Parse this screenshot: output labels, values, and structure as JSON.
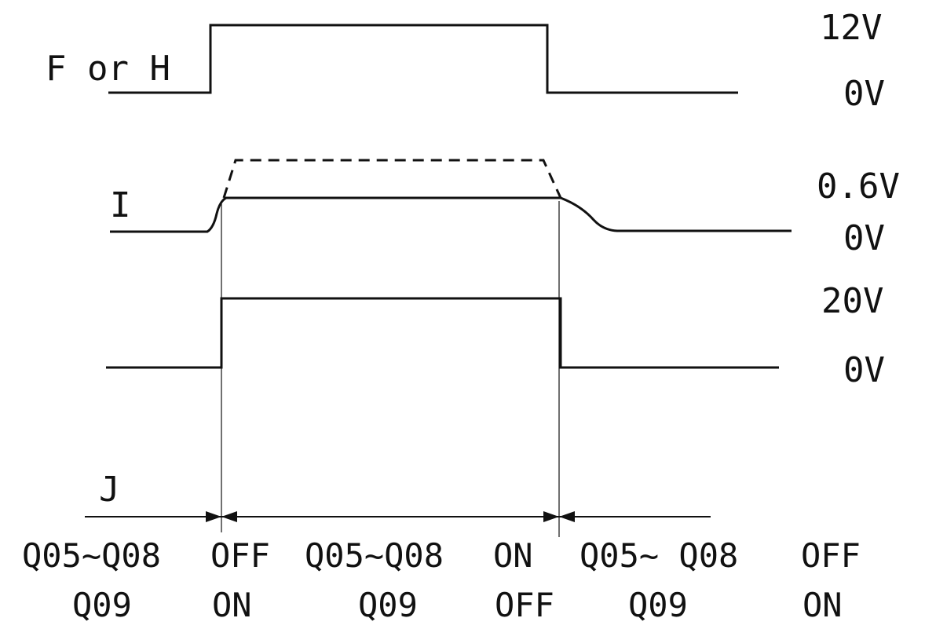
{
  "signals": {
    "fh": {
      "label": "F or H",
      "high": "12V",
      "low": "0V"
    },
    "i": {
      "label": "I",
      "high": "0.6V",
      "low": "0V"
    },
    "j": {
      "label": "J",
      "high": "20V",
      "low": "0V"
    }
  },
  "states": [
    {
      "group": "Q05~Q08",
      "group_state": "OFF",
      "q09": "Q09",
      "q09_state": "ON"
    },
    {
      "group": "Q05~Q08",
      "group_state": "ON",
      "q09": "Q09",
      "q09_state": "OFF"
    },
    {
      "group": "Q05~ Q08",
      "group_state": "OFF",
      "q09": "Q09",
      "q09_state": "ON"
    }
  ]
}
